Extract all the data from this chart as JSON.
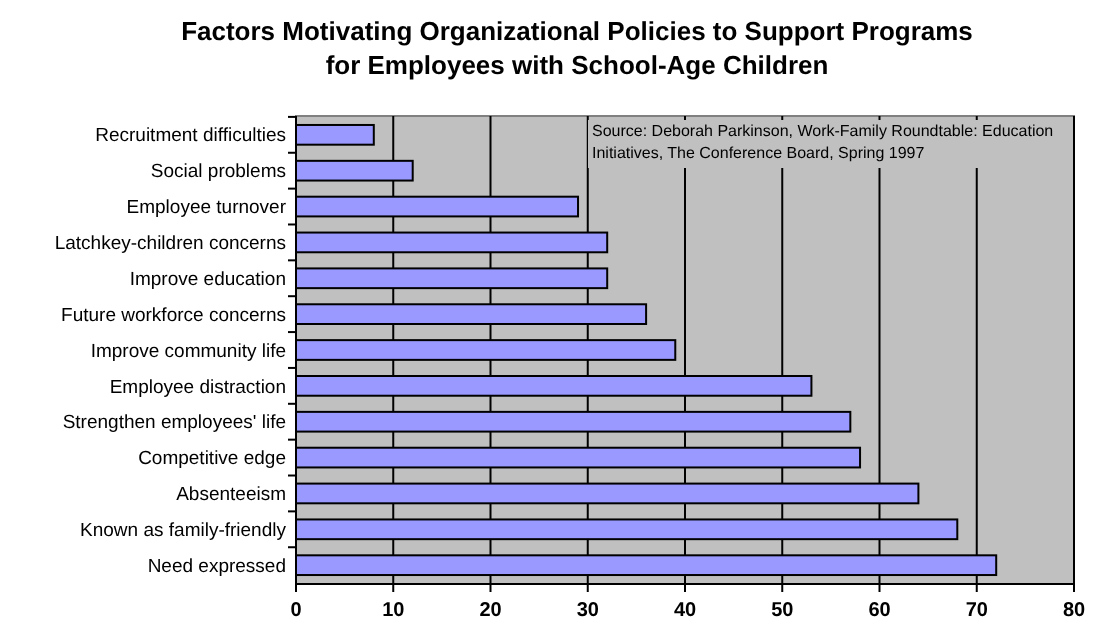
{
  "chart_data": {
    "type": "bar",
    "orientation": "horizontal",
    "title": "Factors Motivating Organizational Policies to Support Programs for Employees with School-Age Children",
    "categories": [
      "Recruitment difficulties",
      "Social problems",
      "Employee turnover",
      "Latchkey-children concerns",
      "Improve education",
      "Future workforce concerns",
      "Improve community life",
      "Employee distraction",
      "Strengthen employees' life",
      "Competitive edge",
      "Absenteeism",
      "Known as family-friendly",
      "Need expressed"
    ],
    "values": [
      8,
      12,
      29,
      32,
      32,
      36,
      39,
      53,
      57,
      58,
      64,
      68,
      72
    ],
    "color": "#9999ff",
    "xlim": [
      0,
      80
    ],
    "xticks": [
      0,
      10,
      20,
      30,
      40,
      50,
      60,
      70,
      80
    ],
    "grid": "x",
    "annotations": [
      "Source: Deborah Parkinson, Work-Family Roundtable: Education Initiatives, The Conference Board, Spring 1997"
    ]
  }
}
